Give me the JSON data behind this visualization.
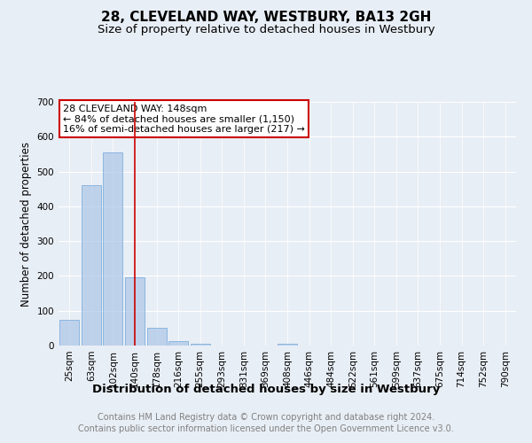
{
  "title": "28, CLEVELAND WAY, WESTBURY, BA13 2GH",
  "subtitle": "Size of property relative to detached houses in Westbury",
  "xlabel": "Distribution of detached houses by size in Westbury",
  "ylabel": "Number of detached properties",
  "categories": [
    "25sqm",
    "63sqm",
    "102sqm",
    "140sqm",
    "178sqm",
    "216sqm",
    "255sqm",
    "293sqm",
    "331sqm",
    "369sqm",
    "408sqm",
    "446sqm",
    "484sqm",
    "522sqm",
    "561sqm",
    "599sqm",
    "637sqm",
    "675sqm",
    "714sqm",
    "752sqm",
    "790sqm"
  ],
  "values": [
    75,
    460,
    555,
    195,
    50,
    13,
    6,
    0,
    0,
    0,
    5,
    0,
    0,
    0,
    0,
    0,
    0,
    0,
    0,
    0,
    0
  ],
  "bar_color": "#adc6e8",
  "bar_edge_color": "#5b9bd5",
  "bar_alpha": 0.7,
  "red_line_index": 3,
  "red_line_color": "#cc0000",
  "annotation_text": "28 CLEVELAND WAY: 148sqm\n← 84% of detached houses are smaller (1,150)\n16% of semi-detached houses are larger (217) →",
  "annotation_box_color": "white",
  "annotation_box_edge": "#cc0000",
  "ylim": [
    0,
    700
  ],
  "yticks": [
    0,
    100,
    200,
    300,
    400,
    500,
    600,
    700
  ],
  "footer1": "Contains HM Land Registry data © Crown copyright and database right 2024.",
  "footer2": "Contains public sector information licensed under the Open Government Licence v3.0.",
  "bg_color": "#e8eef5",
  "plot_bg_color": "#e8eef5",
  "title_fontsize": 11,
  "subtitle_fontsize": 9.5,
  "tick_fontsize": 7.5,
  "ylabel_fontsize": 8.5,
  "xlabel_fontsize": 9.5,
  "footer_fontsize": 7,
  "annotation_fontsize": 8
}
